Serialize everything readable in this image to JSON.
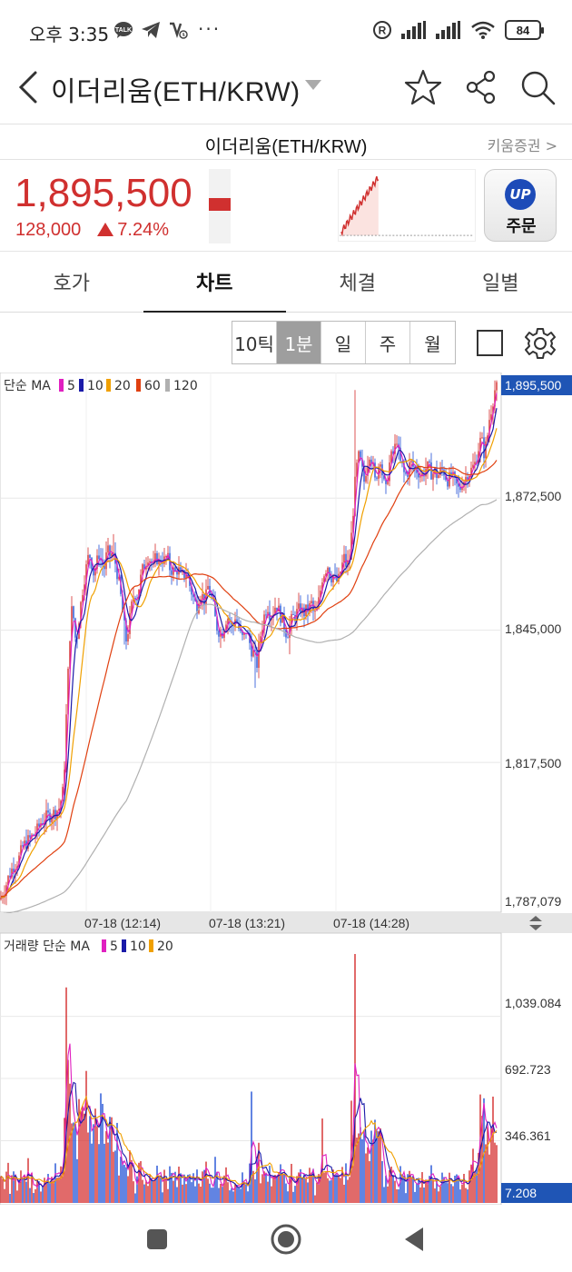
{
  "status": {
    "time": "오후 3:35",
    "left_icons": [
      "talk-icon",
      "telegram-icon",
      "missed-call-icon"
    ],
    "dots": "···",
    "battery": "84"
  },
  "header": {
    "title": "이더리움(ETH/KRW)",
    "subtitle": "이더리움(ETH/KRW)",
    "broker": "키움증권 >"
  },
  "price": {
    "current": "1,895,500",
    "change": "128,000",
    "change_pct": "7.24%",
    "color": "#d0302f"
  },
  "order_button": {
    "logo": "UP",
    "label": "주문"
  },
  "tabs": [
    "호가",
    "차트",
    "체결",
    "일별"
  ],
  "active_tab": 1,
  "periods": [
    "10틱",
    "1분",
    "일",
    "주",
    "월"
  ],
  "active_period": 1,
  "main_chart": {
    "legend_prefix": "단순 MA",
    "ma_periods": [
      "5",
      "10",
      "20",
      "60",
      "120"
    ],
    "ma_colors": [
      "#e020c0",
      "#1a1aa8",
      "#f0a000",
      "#e04010",
      "#b0b0b0"
    ],
    "price_tag": "1,895,500",
    "y_labels": [
      "1,872,500",
      "1,845,000",
      "1,817,500",
      "1,787,079"
    ],
    "time_labels": [
      "07-18 (12:14)",
      "07-18 (13:21)",
      "07-18 (14:28)"
    ]
  },
  "volume_chart": {
    "legend_prefix": "거래량 단순 MA",
    "ma_periods": [
      "5",
      "10",
      "20"
    ],
    "ma_colors": [
      "#e020c0",
      "#1a1aa8",
      "#f0a000"
    ],
    "y_labels": [
      "1,039.084",
      "692.723",
      "346.361"
    ],
    "last_tag": "7.208"
  },
  "chart_data": {
    "type": "candlestick",
    "interval": "1분",
    "y_range": [
      1787079,
      1897500
    ],
    "volume_range": [
      0,
      1386
    ],
    "price_path": [
      [
        0,
        1789000
      ],
      [
        5,
        1791000
      ],
      [
        10,
        1794000
      ],
      [
        15,
        1796000
      ],
      [
        20,
        1797000
      ],
      [
        25,
        1800000
      ],
      [
        30,
        1801000
      ],
      [
        35,
        1802000
      ],
      [
        40,
        1803000
      ],
      [
        45,
        1805000
      ],
      [
        50,
        1806000
      ],
      [
        55,
        1806500
      ],
      [
        60,
        1807000
      ],
      [
        65,
        1808000
      ],
      [
        70,
        1812000
      ],
      [
        72,
        1822000
      ],
      [
        74,
        1832000
      ],
      [
        76,
        1840000
      ],
      [
        78,
        1848000
      ],
      [
        80,
        1850000
      ],
      [
        82,
        1845000
      ],
      [
        84,
        1842000
      ],
      [
        86,
        1846000
      ],
      [
        88,
        1849000
      ],
      [
        90,
        1852000
      ],
      [
        92,
        1855000
      ],
      [
        95,
        1858000
      ],
      [
        98,
        1861000
      ],
      [
        100,
        1860000
      ],
      [
        103,
        1857000
      ],
      [
        106,
        1858500
      ],
      [
        109,
        1861000
      ],
      [
        112,
        1859000
      ],
      [
        115,
        1858000
      ],
      [
        118,
        1861500
      ],
      [
        121,
        1860500
      ],
      [
        124,
        1861000
      ],
      [
        127,
        1859000
      ],
      [
        130,
        1856000
      ],
      [
        133,
        1852000
      ],
      [
        136,
        1847000
      ],
      [
        139,
        1843000
      ],
      [
        142,
        1846000
      ],
      [
        145,
        1850000
      ],
      [
        148,
        1853000
      ],
      [
        151,
        1852000
      ],
      [
        154,
        1855000
      ],
      [
        157,
        1857500
      ],
      [
        160,
        1859000
      ],
      [
        163,
        1860500
      ],
      [
        166,
        1859500
      ],
      [
        169,
        1858000
      ],
      [
        172,
        1860500
      ],
      [
        175,
        1859000
      ],
      [
        178,
        1860000
      ],
      [
        181,
        1859500
      ],
      [
        184,
        1860500
      ],
      [
        187,
        1858000
      ],
      [
        190,
        1857500
      ],
      [
        193,
        1857000
      ],
      [
        196,
        1858000
      ],
      [
        199,
        1856000
      ],
      [
        202,
        1856500
      ],
      [
        205,
        1857000
      ],
      [
        208,
        1855000
      ],
      [
        211,
        1853000
      ],
      [
        214,
        1851000
      ],
      [
        217,
        1850000
      ],
      [
        220,
        1853000
      ],
      [
        223,
        1852000
      ],
      [
        226,
        1851000
      ],
      [
        229,
        1854000
      ],
      [
        232,
        1852500
      ],
      [
        235,
        1850000
      ],
      [
        238,
        1846000
      ],
      [
        241,
        1845000
      ],
      [
        244,
        1844000
      ],
      [
        247,
        1846000
      ],
      [
        250,
        1848000
      ],
      [
        253,
        1847000
      ],
      [
        256,
        1845000
      ],
      [
        259,
        1848000
      ],
      [
        262,
        1846000
      ],
      [
        265,
        1844000
      ],
      [
        268,
        1843000
      ],
      [
        271,
        1845000
      ],
      [
        274,
        1843000
      ],
      [
        277,
        1841000
      ],
      [
        280,
        1840000
      ],
      [
        283,
        1838000
      ],
      [
        286,
        1843000
      ],
      [
        289,
        1846000
      ],
      [
        292,
        1849000
      ],
      [
        295,
        1850000
      ],
      [
        298,
        1848000
      ],
      [
        301,
        1849000
      ],
      [
        304,
        1850500
      ],
      [
        307,
        1849000
      ],
      [
        310,
        1847500
      ],
      [
        313,
        1846000
      ],
      [
        316,
        1844000
      ],
      [
        319,
        1846000
      ],
      [
        322,
        1847500
      ],
      [
        325,
        1848000
      ],
      [
        328,
        1849000
      ],
      [
        331,
        1849500
      ],
      [
        334,
        1848500
      ],
      [
        337,
        1849000
      ],
      [
        340,
        1849500
      ],
      [
        343,
        1850500
      ],
      [
        346,
        1848000
      ],
      [
        349,
        1849000
      ],
      [
        352,
        1852000
      ],
      [
        355,
        1856000
      ],
      [
        358,
        1857500
      ],
      [
        361,
        1858500
      ],
      [
        364,
        1856000
      ],
      [
        367,
        1856500
      ],
      [
        370,
        1855000
      ],
      [
        373,
        1855500
      ],
      [
        376,
        1858000
      ],
      [
        379,
        1860000
      ],
      [
        382,
        1858000
      ],
      [
        385,
        1860000
      ],
      [
        388,
        1867000
      ],
      [
        390,
        1873000
      ],
      [
        392,
        1878000
      ],
      [
        395,
        1881000
      ],
      [
        398,
        1879000
      ],
      [
        401,
        1876000
      ],
      [
        404,
        1879500
      ],
      [
        407,
        1882000
      ],
      [
        410,
        1880000
      ],
      [
        413,
        1876000
      ],
      [
        416,
        1878500
      ],
      [
        419,
        1881000
      ],
      [
        422,
        1876000
      ],
      [
        425,
        1874000
      ],
      [
        428,
        1879000
      ],
      [
        431,
        1881000
      ],
      [
        434,
        1882000
      ],
      [
        437,
        1885000
      ],
      [
        440,
        1880000
      ],
      [
        443,
        1879000
      ],
      [
        446,
        1877000
      ],
      [
        449,
        1878000
      ],
      [
        452,
        1880000
      ],
      [
        455,
        1879000
      ],
      [
        458,
        1878500
      ],
      [
        461,
        1878000
      ],
      [
        464,
        1877000
      ],
      [
        467,
        1878000
      ],
      [
        470,
        1879000
      ],
      [
        473,
        1878500
      ],
      [
        476,
        1877500
      ],
      [
        479,
        1878000
      ],
      [
        482,
        1877000
      ],
      [
        485,
        1878000
      ],
      [
        488,
        1878500
      ],
      [
        491,
        1877000
      ],
      [
        494,
        1876000
      ],
      [
        497,
        1877500
      ],
      [
        500,
        1876000
      ],
      [
        503,
        1875000
      ],
      [
        506,
        1874000
      ],
      [
        509,
        1876000
      ],
      [
        512,
        1876500
      ],
      [
        515,
        1877500
      ],
      [
        518,
        1878000
      ],
      [
        521,
        1879000
      ],
      [
        524,
        1880000
      ],
      [
        527,
        1883000
      ],
      [
        530,
        1885000
      ],
      [
        533,
        1882000
      ],
      [
        536,
        1884000
      ],
      [
        539,
        1889000
      ],
      [
        542,
        1892000
      ],
      [
        545,
        1895000
      ],
      [
        548,
        1895500
      ]
    ],
    "x_axis": [
      "07-18 (12:14)",
      "07-18 (13:21)",
      "07-18 (14:28)"
    ]
  }
}
